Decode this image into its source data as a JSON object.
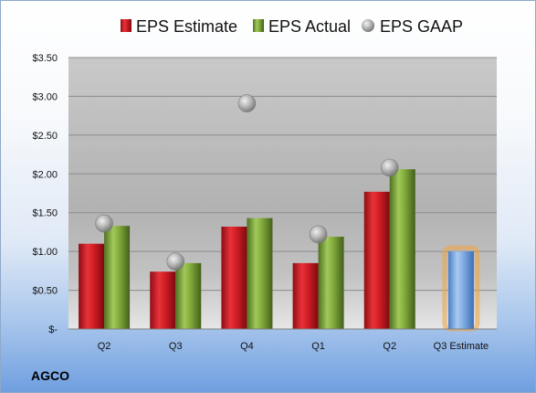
{
  "company": "AGCO",
  "colors": {
    "estimate": "#c8161d",
    "actual": "#77a133",
    "gaap": "#a6a6a6",
    "projected": "#6fa0dc",
    "projected_glow": "#f4a33c"
  },
  "chart_data": {
    "type": "bar",
    "categories": [
      "Q2",
      "Q3",
      "Q4",
      "Q1",
      "Q2",
      "Q3 Estimate"
    ],
    "series": [
      {
        "name": "EPS Estimate",
        "values": [
          1.1,
          0.74,
          1.32,
          0.85,
          1.77,
          1.0
        ]
      },
      {
        "name": "EPS Actual",
        "values": [
          1.33,
          0.85,
          1.43,
          1.19,
          2.06,
          null
        ]
      },
      {
        "name": "EPS GAAP",
        "values": [
          1.36,
          0.87,
          2.91,
          1.22,
          2.08,
          null
        ]
      }
    ],
    "y_ticks": [
      "$-",
      "$0.50",
      "$1.00",
      "$1.50",
      "$2.00",
      "$2.50",
      "$3.00",
      "$3.50"
    ],
    "ylim": [
      0,
      3.5
    ],
    "grid": true,
    "legend": "top"
  }
}
